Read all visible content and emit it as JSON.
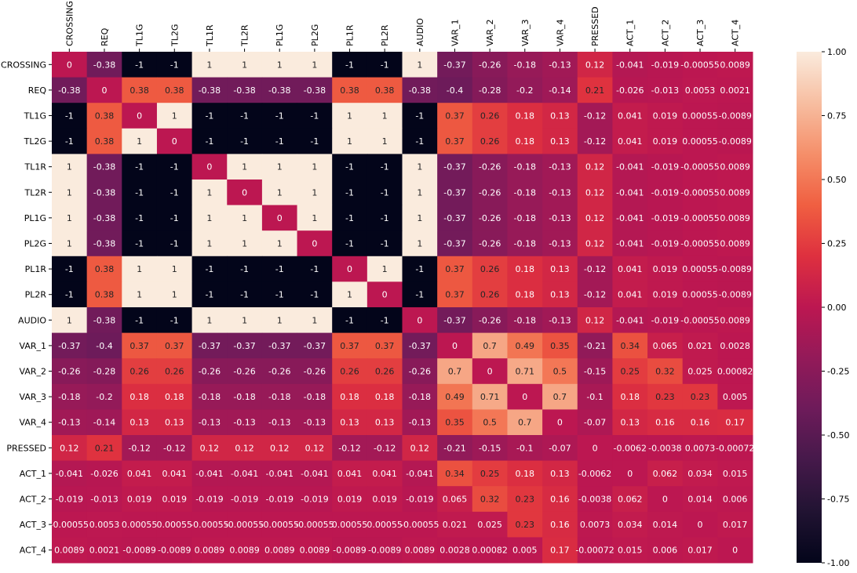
{
  "chart_data": {
    "type": "heatmap",
    "title": "",
    "xlabel": "",
    "ylabel": "",
    "labels": [
      "CROSSING",
      "REQ",
      "TL1G",
      "TL2G",
      "TL1R",
      "TL2R",
      "PL1G",
      "PL2G",
      "PL1R",
      "PL2R",
      "AUDIO",
      "VAR_1",
      "VAR_2",
      "VAR_3",
      "VAR_4",
      "PRESSED",
      "ACT_1",
      "ACT_2",
      "ACT_3",
      "ACT_4"
    ],
    "values": [
      [
        "0",
        "-0.38",
        "-1",
        "-1",
        "1",
        "1",
        "1",
        "1",
        "-1",
        "-1",
        "1",
        "-0.37",
        "-0.26",
        "-0.18",
        "-0.13",
        "0.12",
        "-0.041",
        "-0.019",
        "-0.00055",
        "0.0089"
      ],
      [
        "-0.38",
        "0",
        "0.38",
        "0.38",
        "-0.38",
        "-0.38",
        "-0.38",
        "-0.38",
        "0.38",
        "0.38",
        "-0.38",
        "-0.4",
        "-0.28",
        "-0.2",
        "-0.14",
        "0.21",
        "-0.026",
        "-0.013",
        "0.0053",
        "0.0021"
      ],
      [
        "-1",
        "0.38",
        "0",
        "1",
        "-1",
        "-1",
        "-1",
        "-1",
        "1",
        "1",
        "-1",
        "0.37",
        "0.26",
        "0.18",
        "0.13",
        "-0.12",
        "0.041",
        "0.019",
        "0.00055",
        "-0.0089"
      ],
      [
        "-1",
        "0.38",
        "1",
        "0",
        "-1",
        "-1",
        "-1",
        "-1",
        "1",
        "1",
        "-1",
        "0.37",
        "0.26",
        "0.18",
        "0.13",
        "-0.12",
        "0.041",
        "0.019",
        "0.00055",
        "-0.0089"
      ],
      [
        "1",
        "-0.38",
        "-1",
        "-1",
        "0",
        "1",
        "1",
        "1",
        "-1",
        "-1",
        "1",
        "-0.37",
        "-0.26",
        "-0.18",
        "-0.13",
        "0.12",
        "-0.041",
        "-0.019",
        "-0.00055",
        "0.0089"
      ],
      [
        "1",
        "-0.38",
        "-1",
        "-1",
        "1",
        "0",
        "1",
        "1",
        "-1",
        "-1",
        "1",
        "-0.37",
        "-0.26",
        "-0.18",
        "-0.13",
        "0.12",
        "-0.041",
        "-0.019",
        "-0.00055",
        "0.0089"
      ],
      [
        "1",
        "-0.38",
        "-1",
        "-1",
        "1",
        "1",
        "0",
        "1",
        "-1",
        "-1",
        "1",
        "-0.37",
        "-0.26",
        "-0.18",
        "-0.13",
        "0.12",
        "-0.041",
        "-0.019",
        "-0.00055",
        "0.0089"
      ],
      [
        "1",
        "-0.38",
        "-1",
        "-1",
        "1",
        "1",
        "1",
        "0",
        "-1",
        "-1",
        "1",
        "-0.37",
        "-0.26",
        "-0.18",
        "-0.13",
        "0.12",
        "-0.041",
        "-0.019",
        "-0.00055",
        "0.0089"
      ],
      [
        "-1",
        "0.38",
        "1",
        "1",
        "-1",
        "-1",
        "-1",
        "-1",
        "0",
        "1",
        "-1",
        "0.37",
        "0.26",
        "0.18",
        "0.13",
        "-0.12",
        "0.041",
        "0.019",
        "0.00055",
        "-0.0089"
      ],
      [
        "-1",
        "0.38",
        "1",
        "1",
        "-1",
        "-1",
        "-1",
        "-1",
        "1",
        "0",
        "-1",
        "0.37",
        "0.26",
        "0.18",
        "0.13",
        "-0.12",
        "0.041",
        "0.019",
        "0.00055",
        "-0.0089"
      ],
      [
        "1",
        "-0.38",
        "-1",
        "-1",
        "1",
        "1",
        "1",
        "1",
        "-1",
        "-1",
        "0",
        "-0.37",
        "-0.26",
        "-0.18",
        "-0.13",
        "0.12",
        "-0.041",
        "-0.019",
        "-0.00055",
        "0.0089"
      ],
      [
        "-0.37",
        "-0.4",
        "0.37",
        "0.37",
        "-0.37",
        "-0.37",
        "-0.37",
        "-0.37",
        "0.37",
        "0.37",
        "-0.37",
        "0",
        "0.7",
        "0.49",
        "0.35",
        "-0.21",
        "0.34",
        "0.065",
        "0.021",
        "0.0028"
      ],
      [
        "-0.26",
        "-0.28",
        "0.26",
        "0.26",
        "-0.26",
        "-0.26",
        "-0.26",
        "-0.26",
        "0.26",
        "0.26",
        "-0.26",
        "0.7",
        "0",
        "0.71",
        "0.5",
        "-0.15",
        "0.25",
        "0.32",
        "0.025",
        "0.00082"
      ],
      [
        "-0.18",
        "-0.2",
        "0.18",
        "0.18",
        "-0.18",
        "-0.18",
        "-0.18",
        "-0.18",
        "0.18",
        "0.18",
        "-0.18",
        "0.49",
        "0.71",
        "0",
        "0.7",
        "-0.1",
        "0.18",
        "0.23",
        "0.23",
        "0.005"
      ],
      [
        "-0.13",
        "-0.14",
        "0.13",
        "0.13",
        "-0.13",
        "-0.13",
        "-0.13",
        "-0.13",
        "0.13",
        "0.13",
        "-0.13",
        "0.35",
        "0.5",
        "0.7",
        "0",
        "-0.07",
        "0.13",
        "0.16",
        "0.16",
        "0.17"
      ],
      [
        "0.12",
        "0.21",
        "-0.12",
        "-0.12",
        "0.12",
        "0.12",
        "0.12",
        "0.12",
        "-0.12",
        "-0.12",
        "0.12",
        "-0.21",
        "-0.15",
        "-0.1",
        "-0.07",
        "0",
        "-0.0062",
        "-0.0038",
        "0.0073",
        "-0.00072"
      ],
      [
        "-0.041",
        "-0.026",
        "0.041",
        "0.041",
        "-0.041",
        "-0.041",
        "-0.041",
        "-0.041",
        "0.041",
        "0.041",
        "-0.041",
        "0.34",
        "0.25",
        "0.18",
        "0.13",
        "-0.0062",
        "0",
        "0.062",
        "0.034",
        "0.015"
      ],
      [
        "-0.019",
        "-0.013",
        "0.019",
        "0.019",
        "-0.019",
        "-0.019",
        "-0.019",
        "-0.019",
        "0.019",
        "0.019",
        "-0.019",
        "0.065",
        "0.32",
        "0.23",
        "0.16",
        "-0.0038",
        "0.062",
        "0",
        "0.014",
        "0.006"
      ],
      [
        "-0.00055",
        "0.0053",
        "0.00055",
        "0.00055",
        "-0.00055",
        "-0.00055",
        "-0.00055",
        "-0.00055",
        "0.00055",
        "0.00055",
        "-0.00055",
        "0.021",
        "0.025",
        "0.23",
        "0.16",
        "0.0073",
        "0.034",
        "0.014",
        "0",
        "0.017"
      ],
      [
        "0.0089",
        "0.0021",
        "-0.0089",
        "-0.0089",
        "0.0089",
        "0.0089",
        "0.0089",
        "0.0089",
        "-0.0089",
        "-0.0089",
        "0.0089",
        "0.0028",
        "0.00082",
        "0.005",
        "0.17",
        "-0.00072",
        "0.015",
        "0.006",
        "0.017",
        "0"
      ]
    ],
    "colorbar": {
      "min": -1,
      "max": 1,
      "ticks": [
        "1.00",
        "0.75",
        "0.50",
        "0.25",
        "0.00",
        "-0.25",
        "-0.50",
        "-0.75",
        "-1.00"
      ],
      "colormap": "rocket"
    },
    "x_tick_position": "top",
    "x_tick_rotation": "vertical",
    "grid": false
  }
}
